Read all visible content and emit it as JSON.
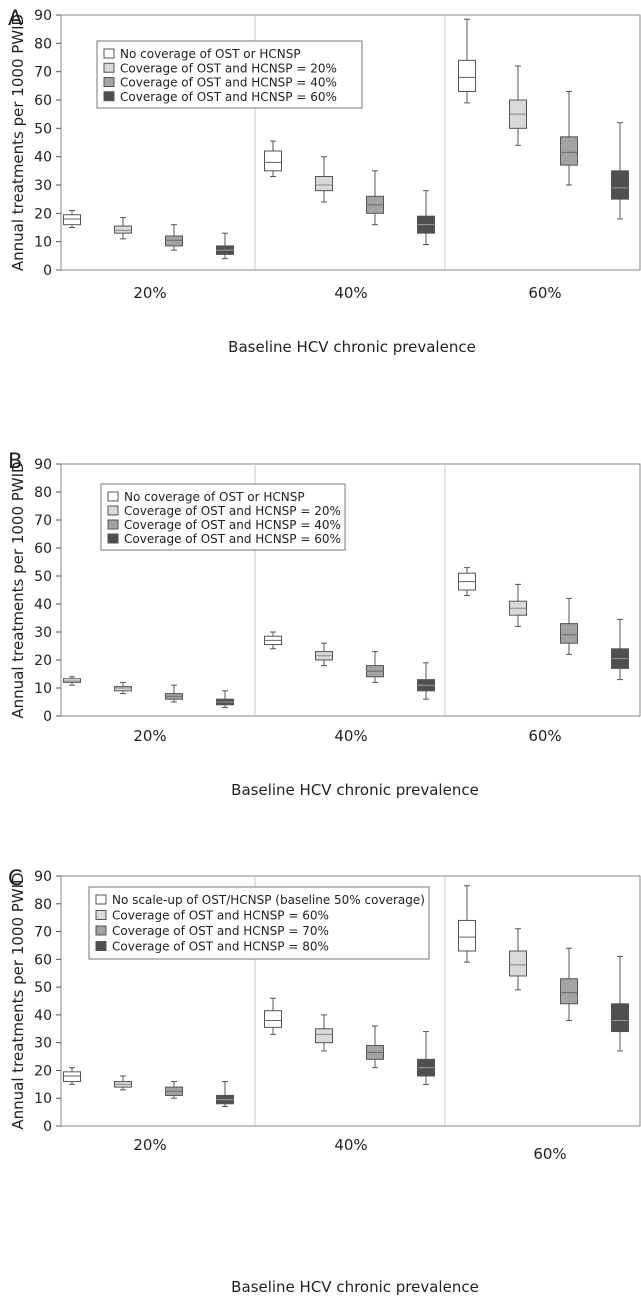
{
  "colors": {
    "scenario_fills": [
      "#ffffff",
      "#d9d9d9",
      "#a3a3a3",
      "#4f4f4f"
    ],
    "scenario_medians": [
      "#666666",
      "#888888",
      "#6a6a6a",
      "#9a9a9a"
    ],
    "stroke": "#555555",
    "separator": "#c8c8c8"
  },
  "chart_data": [
    {
      "type": "box",
      "panel": "A",
      "ylabel": "Annual treatments per 1000 PWID",
      "xlabel": "Baseline HCV chronic prevalence",
      "ylim": [
        0,
        90
      ],
      "yticks": [
        0,
        10,
        20,
        30,
        40,
        50,
        60,
        70,
        80,
        90
      ],
      "categories": [
        "20%",
        "40%",
        "60%"
      ],
      "legend": [
        "No coverage of OST or HCNSP",
        "Coverage of OST and HCNSP = 20%",
        "Coverage of OST and HCNSP = 40%",
        "Coverage of OST and HCNSP = 60%"
      ],
      "legend_position": "top-left",
      "series": [
        {
          "name": "No coverage of OST or HCNSP",
          "boxes": [
            {
              "min": 15,
              "q1": 16,
              "median": 18,
              "q3": 19.5,
              "max": 21
            },
            {
              "min": 33,
              "q1": 35,
              "median": 38,
              "q3": 42,
              "max": 45.5
            },
            {
              "min": 59,
              "q1": 63,
              "median": 68,
              "q3": 74,
              "max": 88.5
            }
          ]
        },
        {
          "name": "Coverage of OST and HCNSP = 20%",
          "boxes": [
            {
              "min": 11,
              "q1": 13,
              "median": 14,
              "q3": 15.5,
              "max": 18.5
            },
            {
              "min": 24,
              "q1": 28,
              "median": 30,
              "q3": 33,
              "max": 40
            },
            {
              "min": 44,
              "q1": 50,
              "median": 55,
              "q3": 60,
              "max": 72
            }
          ]
        },
        {
          "name": "Coverage of OST and HCNSP = 40%",
          "boxes": [
            {
              "min": 7,
              "q1": 8.5,
              "median": 10.5,
              "q3": 12,
              "max": 16
            },
            {
              "min": 16,
              "q1": 20,
              "median": 23,
              "q3": 26,
              "max": 35
            },
            {
              "min": 30,
              "q1": 37,
              "median": 41.5,
              "q3": 47,
              "max": 63
            }
          ]
        },
        {
          "name": "Coverage of OST and HCNSP = 60%",
          "boxes": [
            {
              "min": 4,
              "q1": 5.5,
              "median": 7,
              "q3": 8.5,
              "max": 13
            },
            {
              "min": 9,
              "q1": 13,
              "median": 16,
              "q3": 19,
              "max": 28
            },
            {
              "min": 18,
              "q1": 25,
              "median": 29,
              "q3": 35,
              "max": 52
            }
          ]
        }
      ]
    },
    {
      "type": "box",
      "panel": "B",
      "ylabel": "Annual treatments per 1000 PWID",
      "xlabel": "Baseline HCV chronic prevalence",
      "ylim": [
        0,
        90
      ],
      "yticks": [
        0,
        10,
        20,
        30,
        40,
        50,
        60,
        70,
        80,
        90
      ],
      "categories": [
        "20%",
        "40%",
        "60%"
      ],
      "legend": [
        "No coverage of OST or HCNSP",
        "Coverage of OST and HCNSP = 20%",
        "Coverage of OST and HCNSP = 40%",
        "Coverage of OST and HCNSP = 60%"
      ],
      "legend_position": "top-left",
      "series": [
        {
          "name": "No coverage of OST or HCNSP",
          "boxes": [
            {
              "min": 11,
              "q1": 12,
              "median": 12.5,
              "q3": 13.3,
              "max": 14
            },
            {
              "min": 24,
              "q1": 25.5,
              "median": 27,
              "q3": 28.5,
              "max": 30
            },
            {
              "min": 43,
              "q1": 45,
              "median": 48,
              "q3": 51,
              "max": 53
            }
          ]
        },
        {
          "name": "Coverage of OST and HCNSP = 20%",
          "boxes": [
            {
              "min": 8,
              "q1": 9,
              "median": 10,
              "q3": 10.5,
              "max": 12
            },
            {
              "min": 18,
              "q1": 20,
              "median": 21.5,
              "q3": 23,
              "max": 26
            },
            {
              "min": 32,
              "q1": 36,
              "median": 38.5,
              "q3": 41,
              "max": 47
            }
          ]
        },
        {
          "name": "Coverage of OST and HCNSP = 40%",
          "boxes": [
            {
              "min": 5,
              "q1": 6,
              "median": 7,
              "q3": 8,
              "max": 11
            },
            {
              "min": 12,
              "q1": 14,
              "median": 16,
              "q3": 18,
              "max": 23
            },
            {
              "min": 22,
              "q1": 26,
              "median": 29,
              "q3": 33,
              "max": 42
            }
          ]
        },
        {
          "name": "Coverage of OST and HCNSP = 60%",
          "boxes": [
            {
              "min": 3,
              "q1": 4,
              "median": 5,
              "q3": 6,
              "max": 9
            },
            {
              "min": 6,
              "q1": 9,
              "median": 11,
              "q3": 13,
              "max": 19
            },
            {
              "min": 13,
              "q1": 17,
              "median": 20.5,
              "q3": 24,
              "max": 34.5
            }
          ]
        }
      ]
    },
    {
      "type": "box",
      "panel": "C",
      "ylabel": "Annual treatments per 1000 PWID",
      "xlabel": "Baseline HCV chronic prevalence",
      "ylim": [
        0,
        90
      ],
      "yticks": [
        0,
        10,
        20,
        30,
        40,
        50,
        60,
        70,
        80,
        90
      ],
      "categories": [
        "20%",
        "40%",
        "60%"
      ],
      "legend": [
        "No scale-up of OST/HCNSP (baseline 50% coverage)",
        "Coverage of OST and HCNSP = 60%",
        "Coverage of OST and HCNSP = 70%",
        "Coverage of OST and HCNSP = 80%"
      ],
      "legend_position": "top-left",
      "series": [
        {
          "name": "No scale-up of OST/HCNSP (baseline 50% coverage)",
          "boxes": [
            {
              "min": 15,
              "q1": 16,
              "median": 18,
              "q3": 19.5,
              "max": 21
            },
            {
              "min": 33,
              "q1": 35.5,
              "median": 38,
              "q3": 41.5,
              "max": 46
            },
            {
              "min": 59,
              "q1": 63,
              "median": 68,
              "q3": 74,
              "max": 86.5
            }
          ]
        },
        {
          "name": "Coverage of OST and HCNSP = 60%",
          "boxes": [
            {
              "min": 13,
              "q1": 14,
              "median": 15,
              "q3": 16,
              "max": 18
            },
            {
              "min": 27,
              "q1": 30,
              "median": 33,
              "q3": 35,
              "max": 40
            },
            {
              "min": 49,
              "q1": 54,
              "median": 58,
              "q3": 63,
              "max": 71
            }
          ]
        },
        {
          "name": "Coverage of OST and HCNSP = 70%",
          "boxes": [
            {
              "min": 10,
              "q1": 11,
              "median": 12.5,
              "q3": 14,
              "max": 16
            },
            {
              "min": 21,
              "q1": 24,
              "median": 26.5,
              "q3": 29,
              "max": 36
            },
            {
              "min": 38,
              "q1": 44,
              "median": 48,
              "q3": 53,
              "max": 64
            }
          ]
        },
        {
          "name": "Coverage of OST and HCNSP = 80%",
          "boxes": [
            {
              "min": 7,
              "q1": 8,
              "median": 9.5,
              "q3": 11,
              "max": 16
            },
            {
              "min": 15,
              "q1": 18,
              "median": 21,
              "q3": 24,
              "max": 34
            },
            {
              "min": 27,
              "q1": 34,
              "median": 38,
              "q3": 44,
              "max": 61
            }
          ]
        }
      ]
    }
  ]
}
